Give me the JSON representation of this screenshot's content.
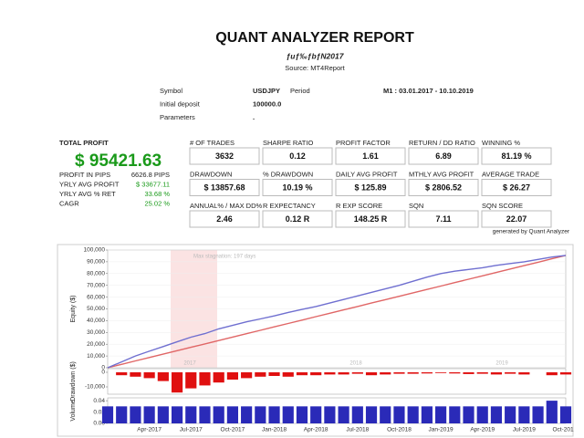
{
  "header": {
    "title": "QUANT ANALYZER REPORT",
    "subtitle": "ƒuƒ‰ƒbƒN2017",
    "source": "Source: MT4Report"
  },
  "info": {
    "rows": [
      [
        "Symbol",
        "USDJPY"
      ],
      [
        "Initial deposit",
        "100000.0"
      ],
      [
        "Parameters",
        "."
      ]
    ],
    "period_label": "Period",
    "period_value": "M1 : 03.01.2017 - 10.10.2019"
  },
  "summary": {
    "label": "TOTAL PROFIT",
    "value": "$ 95421.63",
    "rows": [
      [
        "PROFIT IN PIPS",
        "6626.8 PIPS"
      ],
      [
        "YRLY AVG PROFIT",
        "$ 33677.11"
      ],
      [
        "YRLY AVG % RET",
        "33.68 %"
      ],
      [
        "CAGR",
        "25.02 %"
      ]
    ]
  },
  "metrics": [
    [
      {
        "label": "# OF TRADES",
        "value": "3632"
      },
      {
        "label": "SHARPE RATIO",
        "value": "0.12"
      },
      {
        "label": "PROFIT FACTOR",
        "value": "1.61"
      },
      {
        "label": "RETURN / DD RATIO",
        "value": "6.89"
      },
      {
        "label": "WINNING %",
        "value": "81.19 %"
      }
    ],
    [
      {
        "label": "DRAWDOWN",
        "value": "$ 13857.68"
      },
      {
        "label": "% DRAWDOWN",
        "value": "10.19 %"
      },
      {
        "label": "DAILY AVG PROFIT",
        "value": "$ 125.89"
      },
      {
        "label": "MTHLY AVG PROFIT",
        "value": "$ 2806.52"
      },
      {
        "label": "AVERAGE TRADE",
        "value": "$ 26.27"
      }
    ],
    [
      {
        "label": "ANNUAL% / MAX DD%",
        "value": "2.46"
      },
      {
        "label": "R EXPECTANCY",
        "value": "0.12 R"
      },
      {
        "label": "R EXP SCORE",
        "value": "148.25 R"
      },
      {
        "label": "SQN",
        "value": "7.11"
      },
      {
        "label": "SQN SCORE",
        "value": "22.07"
      }
    ]
  ],
  "footer": {
    "note": "generated by Quant Analyzer"
  },
  "chart_data": [
    {
      "type": "line",
      "y_label": "Equity ($)",
      "annotations": [
        "Max stagnation: 197 days",
        "2017",
        "2018",
        "2019"
      ],
      "ylim": [
        0,
        100000
      ],
      "yticks": [
        0,
        {
          "value": 10000,
          "label": "10,000"
        },
        {
          "value": 20000,
          "label": "20,000"
        },
        {
          "value": 30000,
          "label": "30,000"
        },
        {
          "value": 40000,
          "label": "40,000"
        },
        {
          "value": 50000,
          "label": "50,000"
        },
        {
          "value": 60000,
          "label": "60,000"
        },
        {
          "value": 70000,
          "label": "70,000"
        },
        {
          "value": 80000,
          "label": "80,000"
        },
        {
          "value": 90000,
          "label": "90,000"
        },
        {
          "value": 100000,
          "label": "100,000"
        }
      ],
      "grid": true,
      "series": [
        {
          "color": "#e06666",
          "values": [
            0,
            2892,
            5783,
            8675,
            11566,
            14458,
            17349,
            20241,
            23132,
            26024,
            28916,
            31807,
            34699,
            37590,
            40482,
            43373,
            46265,
            49156,
            52048,
            54940,
            57831,
            60723,
            63614,
            66506,
            69397,
            72289,
            75180,
            78072,
            80964,
            83855,
            86747,
            89638,
            92530,
            95422
          ]
        },
        {
          "color": "#6f6fd0",
          "values": [
            0,
            5000,
            10000,
            14000,
            18000,
            22000,
            26000,
            29000,
            33000,
            36000,
            39000,
            41500,
            44000,
            47000,
            49500,
            52000,
            55000,
            58000,
            61000,
            64000,
            67000,
            70000,
            73500,
            77000,
            80000,
            82000,
            83500,
            85000,
            87000,
            88500,
            90000,
            92000,
            94000,
            95421.63
          ]
        }
      ]
    },
    {
      "type": "bar",
      "y_label": "Drawdown ($)",
      "color": "#e01010",
      "ylim": [
        -15000,
        2500
      ],
      "yticks": [
        {
          "value": -10000,
          "label": "-10,000"
        },
        0
      ],
      "values": [
        0,
        -2000,
        -3000,
        -4000,
        -6000,
        -13857.68,
        -11000,
        -9000,
        -7000,
        -5000,
        -4000,
        -3000,
        -2500,
        -3000,
        -2000,
        -2000,
        -1500,
        -1500,
        -1000,
        -2000,
        -1500,
        -1000,
        -1000,
        -800,
        -500,
        -800,
        -1200,
        -1000,
        -1500,
        -1000,
        -1500,
        0,
        -2000,
        -1500
      ]
    },
    {
      "type": "bar",
      "y_label": "Volume",
      "color": "#2a2ab8",
      "ylim": [
        0,
        0.045
      ],
      "yticks": [
        {
          "value": 0,
          "label": "0.00"
        },
        {
          "value": 0.02,
          "label": "0.02"
        },
        {
          "value": 0.04,
          "label": "0.04"
        }
      ],
      "categories": [
        null,
        null,
        null,
        "Apr-2017",
        null,
        null,
        "Jul-2017",
        null,
        null,
        "Oct-2017",
        null,
        null,
        "Jan-2018",
        null,
        null,
        "Apr-2018",
        null,
        null,
        "Jul-2018",
        null,
        null,
        "Oct-2018",
        null,
        null,
        "Jan-2019",
        null,
        null,
        "Apr-2019",
        null,
        null,
        "Jul-2019",
        null,
        null,
        "Oct-201"
      ],
      "values": [
        0.03,
        0.03,
        0.03,
        0.03,
        0.03,
        0.03,
        0.03,
        0.03,
        0.03,
        0.03,
        0.03,
        0.03,
        0.03,
        0.03,
        0.03,
        0.03,
        0.03,
        0.03,
        0.03,
        0.03,
        0.03,
        0.03,
        0.03,
        0.03,
        0.03,
        0.03,
        0.03,
        0.03,
        0.03,
        0.03,
        0.03,
        0.03,
        0.04,
        0.03
      ]
    }
  ]
}
